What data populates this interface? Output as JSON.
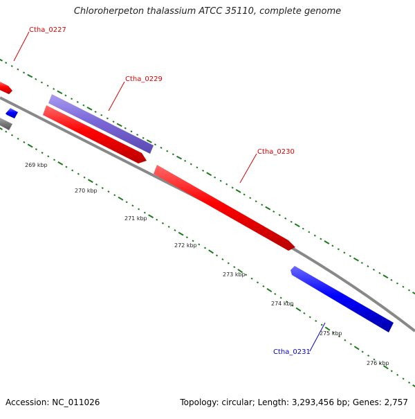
{
  "title": "Chloroherpeton thalassium ATCC 35110, complete genome",
  "accession": "Accession: NC_011026",
  "topology": "Topology: circular; Length: 3,293,456 bp; Genes: 2,757",
  "colors": {
    "backbone": "#808080",
    "tick": "#1a7a1a",
    "forward_gene": "#ff0000",
    "reverse_gene": "#0000ff",
    "highlight_gene": "#7b68d8",
    "other_gene": "#777777"
  },
  "kbp_ticks": [
    "269 kbp",
    "270 kbp",
    "271 kbp",
    "272 kbp",
    "273 kbp",
    "274 kbp",
    "275 kbp",
    "276 kbp"
  ],
  "gene_labels": {
    "ctha_0227": "Ctha_0227",
    "ctha_0229": "Ctha_0229",
    "ctha_0230": "Ctha_0230",
    "ctha_0231": "Ctha_0231"
  }
}
